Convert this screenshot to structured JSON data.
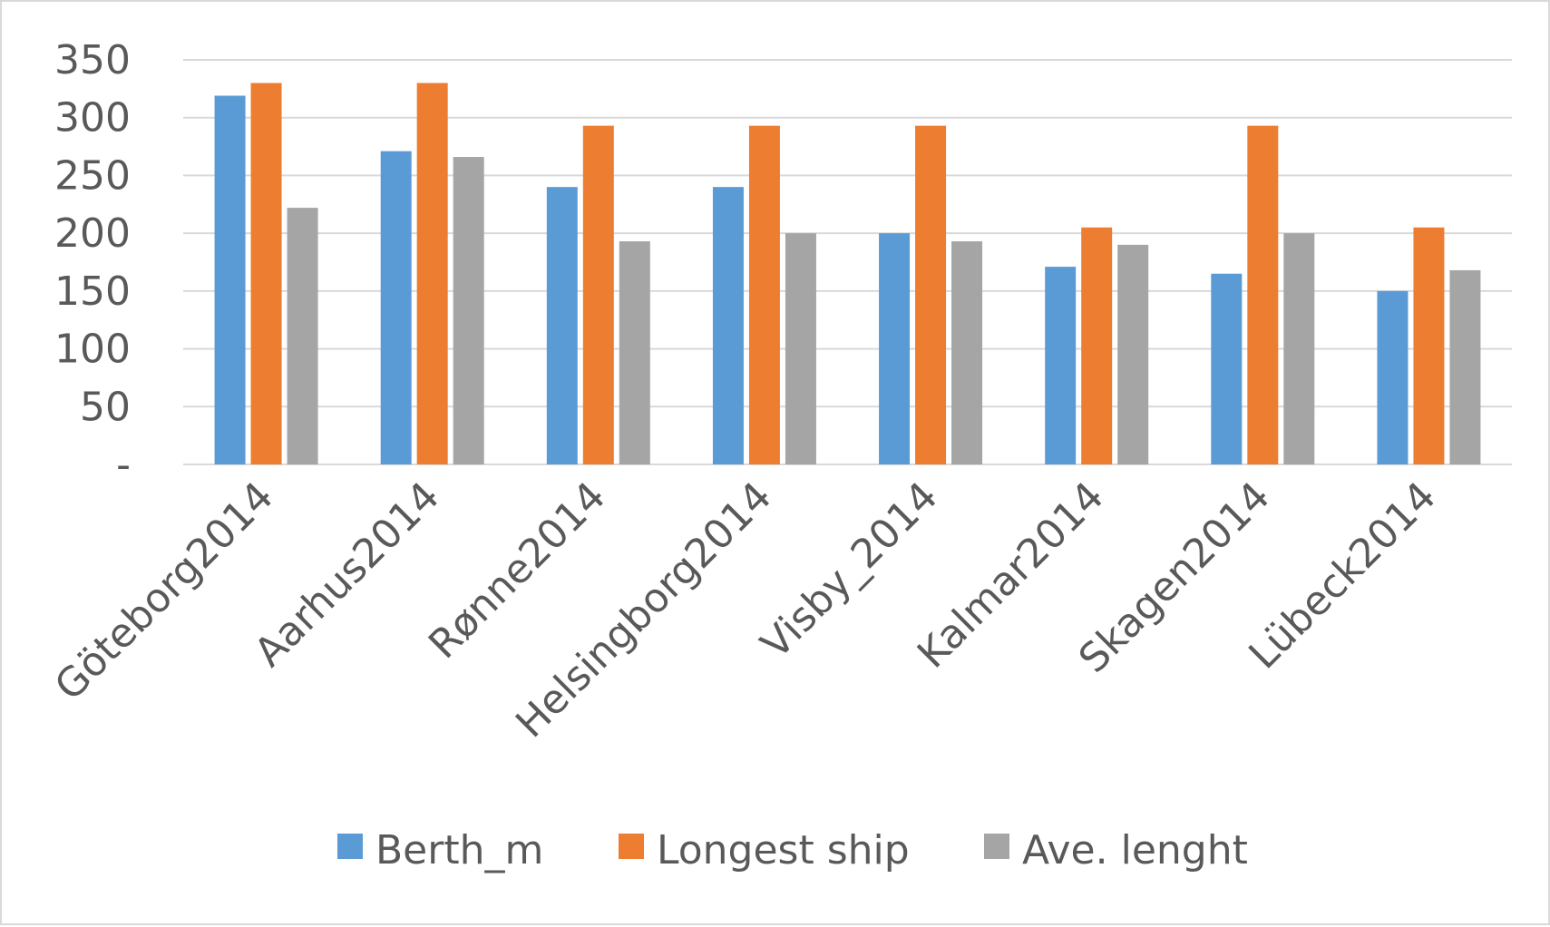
{
  "chart_data": {
    "type": "bar",
    "title": "",
    "xlabel": "",
    "ylabel": "",
    "categories": [
      "Göteborg2014",
      "Aarhus2014",
      "Rønne2014",
      "Helsingborg2014",
      "Visby_2014",
      "Kalmar2014",
      "Skagen2014",
      "Lübeck2014"
    ],
    "series": [
      {
        "name": "Berth_m",
        "color": "#5b9bd5",
        "values": [
          319,
          271,
          240,
          240,
          200,
          171,
          165,
          150
        ]
      },
      {
        "name": "Longest ship",
        "color": "#ed7d31",
        "values": [
          330,
          330,
          293,
          293,
          293,
          205,
          293,
          205
        ]
      },
      {
        "name": "Ave. lenght",
        "color": "#a5a5a5",
        "values": [
          222,
          266,
          193,
          200,
          193,
          190,
          200,
          168
        ]
      }
    ],
    "ylim": [
      0,
      350
    ],
    "yticks": [
      0,
      50,
      100,
      150,
      200,
      250,
      300,
      350
    ],
    "ytick_labels": [
      "-",
      "50",
      "100",
      "150",
      "200",
      "250",
      "300",
      "350"
    ],
    "grid": true,
    "legend": "bottom"
  }
}
